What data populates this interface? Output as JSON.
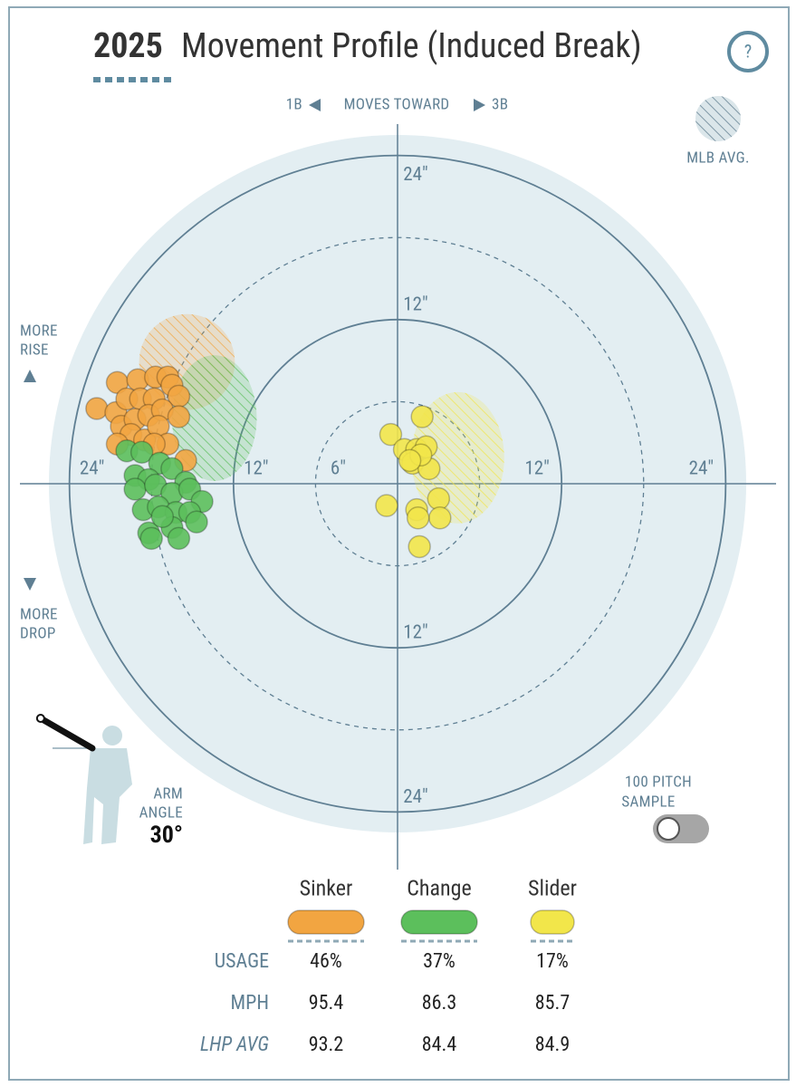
{
  "header": {
    "title_year": "2025",
    "title": "Movement Profile (Induced Break)",
    "help": "?"
  },
  "direction": {
    "left": "1B",
    "middle": "MOVES TOWARD",
    "right": "3B"
  },
  "mlb_avg_label": "MLB AVG.",
  "rise_label": [
    "MORE",
    "RISE"
  ],
  "drop_label": [
    "MORE",
    "DROP"
  ],
  "arm_angle": {
    "label": [
      "ARM",
      "ANGLE"
    ],
    "value": 30,
    "value_label": "30°"
  },
  "sample_toggle": {
    "label": [
      "100 PITCH",
      "SAMPLE"
    ]
  },
  "chart_data": {
    "type": "scatter",
    "xlim": [
      -25.5,
      25.5
    ],
    "ylim": [
      -25.5,
      25.5
    ],
    "rings": [
      {
        "value": 6,
        "style": "dashed"
      },
      {
        "value": 12,
        "style": "solid"
      },
      {
        "value": 18,
        "style": "dashed"
      },
      {
        "value": 24,
        "style": "solid"
      }
    ],
    "xticks": [
      {
        "value": -24,
        "label": "24\""
      },
      {
        "value": -12,
        "label": "12\""
      },
      {
        "value": -6,
        "label": "6\""
      },
      {
        "value": 12,
        "label": "12\""
      },
      {
        "value": 24,
        "label": "24\""
      }
    ],
    "yticks": [
      {
        "value": 24,
        "label": "24\""
      },
      {
        "value": 12,
        "label": "12\""
      },
      {
        "value": -12,
        "label": "12\""
      },
      {
        "value": -24,
        "label": "24\""
      }
    ],
    "series": [
      {
        "name": "Sinker",
        "color": "#f2a541",
        "x": [
          -22.0,
          -20.5,
          -19.0,
          -17.7,
          -16.8,
          -16.5,
          -16.0,
          -20.6,
          -19.8,
          -18.8,
          -17.8,
          -20.2,
          -19.2,
          -18.2,
          -17.2,
          -16.0,
          -19.5,
          -18.5,
          -17.5,
          -16.8,
          -20.5,
          -15.5,
          -17.8
        ],
        "y": [
          5.5,
          7.4,
          7.6,
          7.8,
          7.8,
          7.2,
          6.4,
          5.2,
          6.2,
          6.2,
          6.2,
          4.2,
          4.7,
          5.0,
          5.4,
          4.9,
          3.6,
          3.2,
          4.2,
          2.9,
          2.9,
          1.7,
          2.9
        ],
        "mlb_avg": {
          "x": -15.4,
          "y": 8.9,
          "rx": 3.5,
          "ry": 3.5
        }
      },
      {
        "name": "Change",
        "color": "#5cbf5c",
        "x": [
          -19.8,
          -18.7,
          -17.4,
          -16.5,
          -19.2,
          -18.2,
          -15.5,
          -19.2,
          -17.7,
          -16.5,
          -15.2,
          -14.3,
          -18.6,
          -17.5,
          -16.2,
          -15.2,
          -14.7,
          -18.2,
          -16.5,
          -16.0,
          -18.0,
          -17.2
        ],
        "y": [
          2.4,
          2.3,
          1.5,
          1.1,
          0.6,
          0.3,
          0.1,
          -0.4,
          -0.1,
          -0.7,
          -0.4,
          -1.3,
          -1.9,
          -1.7,
          -2.1,
          -2.1,
          -2.8,
          -3.6,
          -3.2,
          -4.0,
          -4.0,
          -2.4
        ],
        "mlb_avg": {
          "x": -13.4,
          "y": 4.8,
          "rx": 3.1,
          "ry": 4.6
        }
      },
      {
        "name": "Slider",
        "color": "#f2e64a",
        "x": [
          1.8,
          -0.5,
          0.5,
          1.4,
          2.1,
          1.1,
          2.3,
          1.7,
          0.9,
          -0.8,
          1.4,
          3.0,
          3.1,
          1.5,
          1.6
        ],
        "y": [
          4.9,
          3.6,
          2.5,
          2.5,
          2.7,
          1.5,
          1.1,
          2.1,
          1.7,
          -1.6,
          -1.9,
          -1.1,
          -2.5,
          -2.5,
          -4.6
        ],
        "mlb_avg": {
          "x": 4.4,
          "y": 1.9,
          "rx": 3.4,
          "ry": 4.8
        }
      }
    ]
  },
  "table": {
    "row_labels": [
      "USAGE",
      "MPH",
      "LHP AVG"
    ],
    "rows": [
      [
        46,
        37,
        17
      ],
      [
        95.4,
        86.3,
        85.7
      ],
      [
        93.2,
        84.4,
        84.9
      ]
    ],
    "value_labels": [
      [
        "46%",
        "37%",
        "17%"
      ]
    ]
  }
}
